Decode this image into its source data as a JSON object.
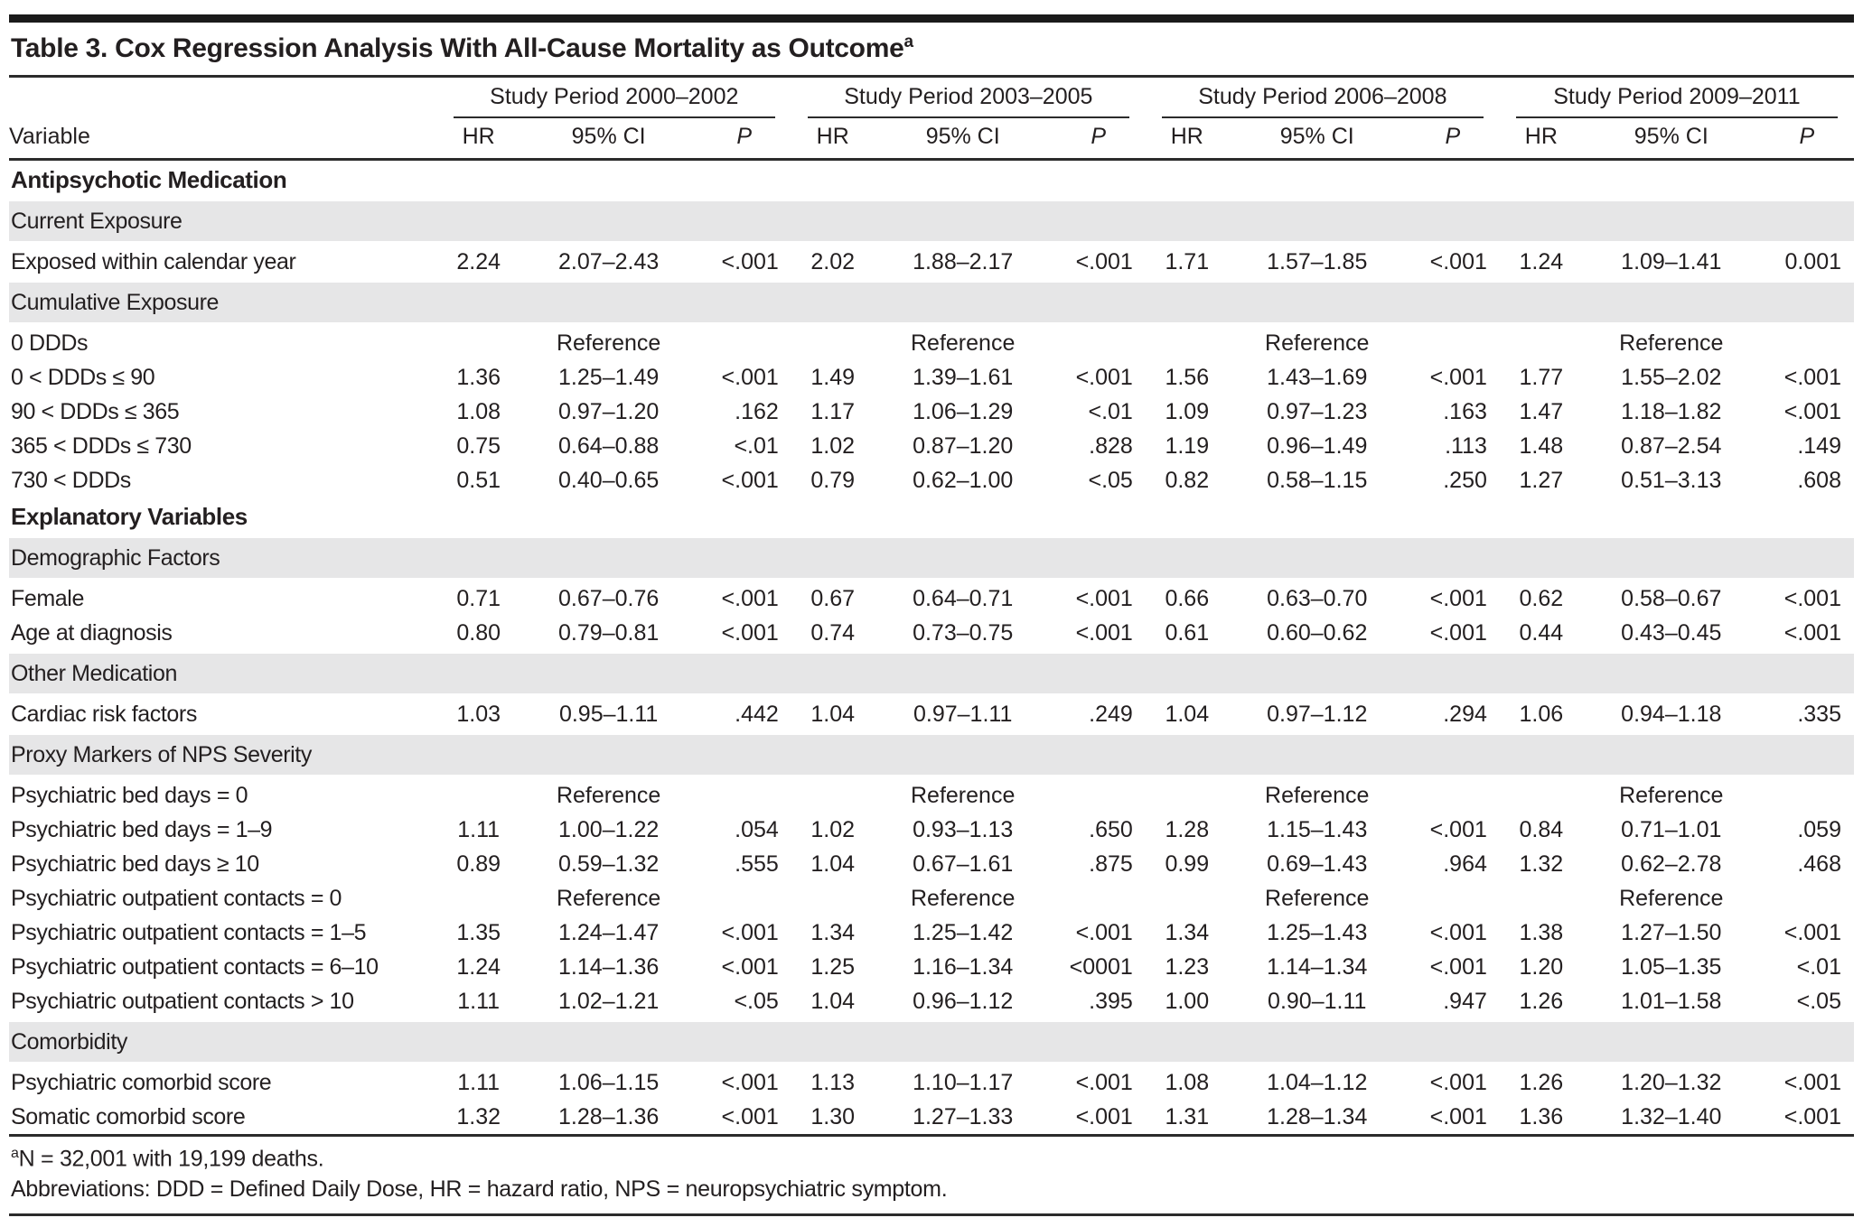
{
  "table": {
    "title_prefix": "Table 3. Cox Regression Analysis With All-Cause Mortality as Outcome",
    "title_superscript": "a",
    "variable_header": "Variable",
    "period_groups": [
      "Study Period 2000–2002",
      "Study Period 2003–2005",
      "Study Period 2006–2008",
      "Study Period 2009–2011"
    ],
    "sub_headers": [
      "HR",
      "95% CI",
      "P"
    ],
    "reference_label": "Reference",
    "rows": [
      {
        "type": "section-bold",
        "label": "Antipsychotic Medication"
      },
      {
        "type": "section-gray",
        "label": "Current Exposure"
      },
      {
        "type": "data",
        "label": "Exposed within calendar year",
        "cells": [
          [
            "2.24",
            "2.07–2.43",
            "<.001"
          ],
          [
            "2.02",
            "1.88–2.17",
            "<.001"
          ],
          [
            "1.71",
            "1.57–1.85",
            "<.001"
          ],
          [
            "1.24",
            "1.09–1.41",
            "0.001"
          ]
        ]
      },
      {
        "type": "section-gray",
        "label": "Cumulative Exposure"
      },
      {
        "type": "reference",
        "label": "0 DDDs"
      },
      {
        "type": "data",
        "label": "0 < DDDs ≤ 90",
        "cells": [
          [
            "1.36",
            "1.25–1.49",
            "<.001"
          ],
          [
            "1.49",
            "1.39–1.61",
            "<.001"
          ],
          [
            "1.56",
            "1.43–1.69",
            "<.001"
          ],
          [
            "1.77",
            "1.55–2.02",
            "<.001"
          ]
        ]
      },
      {
        "type": "data",
        "label": "90 < DDDs ≤ 365",
        "cells": [
          [
            "1.08",
            "0.97–1.20",
            ".162"
          ],
          [
            "1.17",
            "1.06–1.29",
            "<.01"
          ],
          [
            "1.09",
            "0.97–1.23",
            ".163"
          ],
          [
            "1.47",
            "1.18–1.82",
            "<.001"
          ]
        ]
      },
      {
        "type": "data",
        "label": "365 < DDDs ≤ 730",
        "cells": [
          [
            "0.75",
            "0.64–0.88",
            "<.01"
          ],
          [
            "1.02",
            "0.87–1.20",
            ".828"
          ],
          [
            "1.19",
            "0.96–1.49",
            ".113"
          ],
          [
            "1.48",
            "0.87–2.54",
            ".149"
          ]
        ]
      },
      {
        "type": "data",
        "label": "730 < DDDs",
        "cells": [
          [
            "0.51",
            "0.40–0.65",
            "<.001"
          ],
          [
            "0.79",
            "0.62–1.00",
            "<.05"
          ],
          [
            "0.82",
            "0.58–1.15",
            ".250"
          ],
          [
            "1.27",
            "0.51–3.13",
            ".608"
          ]
        ]
      },
      {
        "type": "section-bold",
        "label": "Explanatory Variables"
      },
      {
        "type": "section-gray",
        "label": "Demographic Factors"
      },
      {
        "type": "data",
        "label": "Female",
        "cells": [
          [
            "0.71",
            "0.67–0.76",
            "<.001"
          ],
          [
            "0.67",
            "0.64–0.71",
            "<.001"
          ],
          [
            "0.66",
            "0.63–0.70",
            "<.001"
          ],
          [
            "0.62",
            "0.58–0.67",
            "<.001"
          ]
        ]
      },
      {
        "type": "data",
        "label": "Age at diagnosis",
        "cells": [
          [
            "0.80",
            "0.79–0.81",
            "<.001"
          ],
          [
            "0.74",
            "0.73–0.75",
            "<.001"
          ],
          [
            "0.61",
            "0.60–0.62",
            "<.001"
          ],
          [
            "0.44",
            "0.43–0.45",
            "<.001"
          ]
        ]
      },
      {
        "type": "section-gray",
        "label": "Other Medication"
      },
      {
        "type": "data",
        "label": "Cardiac risk factors",
        "cells": [
          [
            "1.03",
            "0.95–1.11",
            ".442"
          ],
          [
            "1.04",
            "0.97–1.11",
            ".249"
          ],
          [
            "1.04",
            "0.97–1.12",
            ".294"
          ],
          [
            "1.06",
            "0.94–1.18",
            ".335"
          ]
        ]
      },
      {
        "type": "section-gray",
        "label": "Proxy Markers of NPS Severity"
      },
      {
        "type": "reference",
        "label": "Psychiatric bed days = 0"
      },
      {
        "type": "data",
        "label": "Psychiatric bed days = 1–9",
        "cells": [
          [
            "1.11",
            "1.00–1.22",
            ".054"
          ],
          [
            "1.02",
            "0.93–1.13",
            ".650"
          ],
          [
            "1.28",
            "1.15–1.43",
            "<.001"
          ],
          [
            "0.84",
            "0.71–1.01",
            ".059"
          ]
        ]
      },
      {
        "type": "data",
        "label": "Psychiatric bed days ≥ 10",
        "cells": [
          [
            "0.89",
            "0.59–1.32",
            ".555"
          ],
          [
            "1.04",
            "0.67–1.61",
            ".875"
          ],
          [
            "0.99",
            "0.69–1.43",
            ".964"
          ],
          [
            "1.32",
            "0.62–2.78",
            ".468"
          ]
        ]
      },
      {
        "type": "reference",
        "label": "Psychiatric outpatient contacts = 0"
      },
      {
        "type": "data",
        "label": "Psychiatric outpatient contacts = 1–5",
        "cells": [
          [
            "1.35",
            "1.24–1.47",
            "<.001"
          ],
          [
            "1.34",
            "1.25–1.42",
            "<.001"
          ],
          [
            "1.34",
            "1.25–1.43",
            "<.001"
          ],
          [
            "1.38",
            "1.27–1.50",
            "<.001"
          ]
        ]
      },
      {
        "type": "data",
        "label": "Psychiatric outpatient contacts = 6–10",
        "cells": [
          [
            "1.24",
            "1.14–1.36",
            "<.001"
          ],
          [
            "1.25",
            "1.16–1.34",
            "<0001"
          ],
          [
            "1.23",
            "1.14–1.34",
            "<.001"
          ],
          [
            "1.20",
            "1.05–1.35",
            "<.01"
          ]
        ]
      },
      {
        "type": "data",
        "label": "Psychiatric outpatient contacts > 10",
        "cells": [
          [
            "1.11",
            "1.02–1.21",
            "<.05"
          ],
          [
            "1.04",
            "0.96–1.12",
            ".395"
          ],
          [
            "1.00",
            "0.90–1.11",
            ".947"
          ],
          [
            "1.26",
            "1.01–1.58",
            "<.05"
          ]
        ]
      },
      {
        "type": "section-gray",
        "label": "Comorbidity"
      },
      {
        "type": "data",
        "label": "Psychiatric comorbid score",
        "cells": [
          [
            "1.11",
            "1.06–1.15",
            "<.001"
          ],
          [
            "1.13",
            "1.10–1.17",
            "<.001"
          ],
          [
            "1.08",
            "1.04–1.12",
            "<.001"
          ],
          [
            "1.26",
            "1.20–1.32",
            "<.001"
          ]
        ]
      },
      {
        "type": "data",
        "label": "Somatic comorbid score",
        "cells": [
          [
            "1.32",
            "1.28–1.36",
            "<.001"
          ],
          [
            "1.30",
            "1.27–1.33",
            "<.001"
          ],
          [
            "1.31",
            "1.28–1.34",
            "<.001"
          ],
          [
            "1.36",
            "1.32–1.40",
            "<.001"
          ]
        ]
      }
    ],
    "footnotes": {
      "note_superscript": "a",
      "note_text": "N = 32,001 with 19,199 deaths.",
      "abbreviations": "Abbreviations: DDD = Defined Daily Dose, HR = hazard ratio, NPS = neuropsychiatric symptom."
    }
  }
}
